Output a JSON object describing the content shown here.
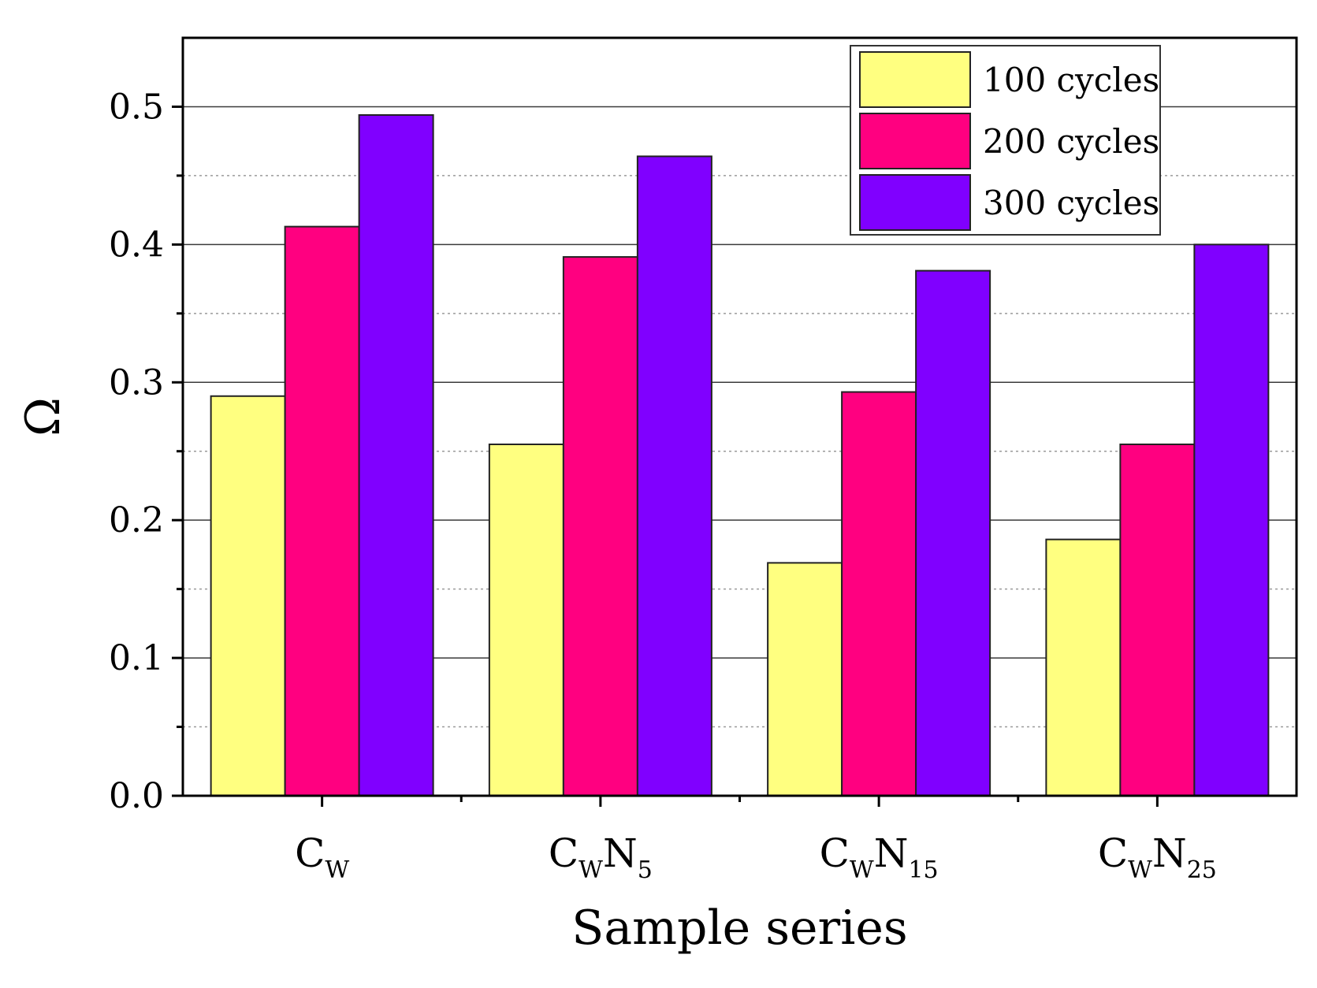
{
  "chart_data": {
    "type": "bar",
    "categories": [
      {
        "base": "C",
        "segments": [
          {
            "text": "W",
            "sub": true
          }
        ]
      },
      {
        "base": "C",
        "segments": [
          {
            "text": "W",
            "sub": true
          },
          {
            "text": "N",
            "sub": false
          },
          {
            "text": "5",
            "sub": true
          }
        ]
      },
      {
        "base": "C",
        "segments": [
          {
            "text": "W",
            "sub": true
          },
          {
            "text": "N",
            "sub": false
          },
          {
            "text": "15",
            "sub": true
          }
        ]
      },
      {
        "base": "C",
        "segments": [
          {
            "text": "W",
            "sub": true
          },
          {
            "text": "N",
            "sub": false
          },
          {
            "text": "25",
            "sub": true
          }
        ]
      }
    ],
    "series": [
      {
        "name": "100 cycles",
        "color": "#ffff80",
        "values": [
          0.29,
          0.255,
          0.169,
          0.186
        ]
      },
      {
        "name": "200 cycles",
        "color": "#ff0080",
        "values": [
          0.413,
          0.391,
          0.293,
          0.255
        ]
      },
      {
        "name": "300 cycles",
        "color": "#8000ff",
        "values": [
          0.494,
          0.464,
          0.381,
          0.4
        ]
      }
    ],
    "xlabel": "Sample series",
    "ylabel": "Ω",
    "ylim": [
      0,
      0.55
    ],
    "yticks": [
      "0.0",
      "0.1",
      "0.2",
      "0.3",
      "0.4",
      "0.5"
    ],
    "major_grid": true,
    "minor_grid": "dotted",
    "legend_position": "top-right"
  }
}
